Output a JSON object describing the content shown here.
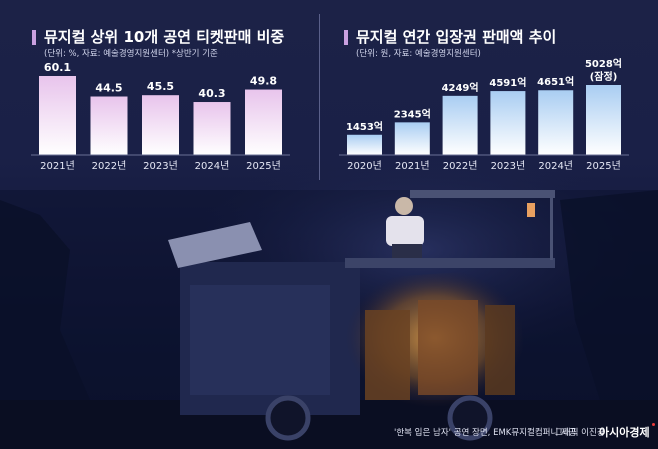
{
  "chart_data": [
    {
      "type": "bar",
      "title": "뮤지컬 상위 10개 공연 티켓판매 비중",
      "subtitle": "(단위: %, 자료: 예술경영지원센터)  *상반기 기준",
      "categories": [
        "2021년",
        "2022년",
        "2023년",
        "2024년",
        "2025년"
      ],
      "values": [
        60.1,
        44.5,
        45.5,
        40.3,
        49.8
      ],
      "value_labels": [
        "60.1",
        "44.5",
        "45.5",
        "40.3",
        "49.8"
      ],
      "ylim": [
        0,
        60.1
      ],
      "grid": false,
      "colors": {
        "top": "#e8c4ec",
        "bottom": "#ffffff"
      }
    },
    {
      "type": "bar",
      "title": "뮤지컬 연간 입장권 판매액 추이",
      "subtitle": "(단위: 원, 자료: 예술경영지원센터)",
      "categories": [
        "2020년",
        "2021년",
        "2022년",
        "2023년",
        "2024년",
        "2025년"
      ],
      "values": [
        1453,
        2345,
        4249,
        4591,
        4651,
        5028
      ],
      "value_labels": [
        "1453억",
        "2345억",
        "4249억",
        "4591억",
        "4651억",
        "5028억"
      ],
      "annotations": [
        "(잠정)"
      ],
      "ylim": [
        0,
        5028
      ],
      "grid": false,
      "colors": {
        "top": "#a9cdf2",
        "bottom": "#ffffff"
      }
    }
  ],
  "footer": {
    "caption": "'한복 입은 남자' 공연 장면,  EMK뮤지컬컴퍼니 제공",
    "graphic": "그래픽 이진경",
    "logo": "아시아경제"
  }
}
